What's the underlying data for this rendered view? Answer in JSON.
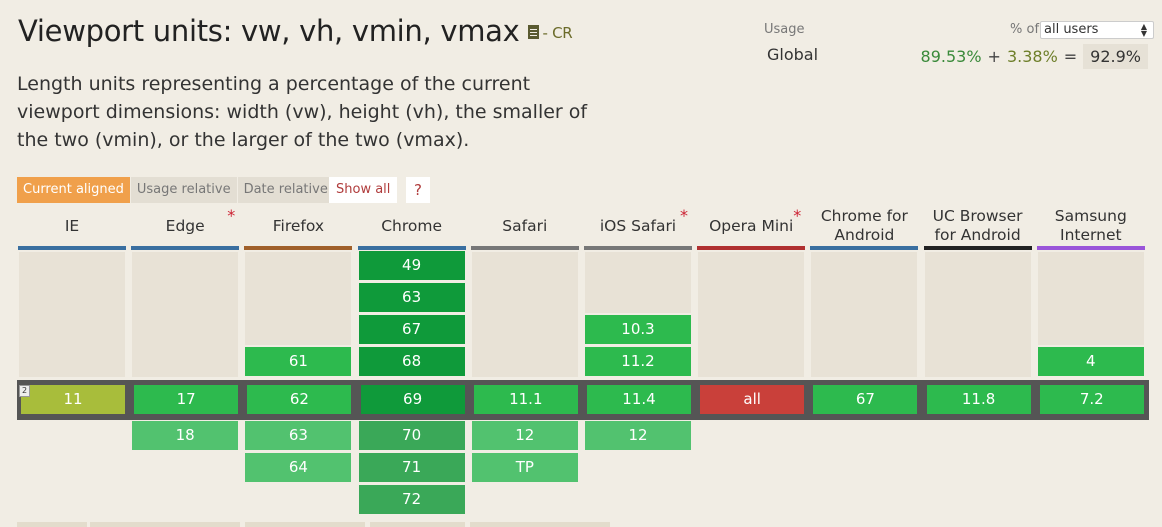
{
  "header": {
    "title": "Viewport units: vw, vh, vmin, vmax",
    "status": "- CR",
    "description": "Length units representing a percentage of the current viewport dimensions: width (vw), height (vh), the smaller of the two (vmin), or the larger of the two (vmax)."
  },
  "usage": {
    "label": "Usage",
    "region": "Global",
    "pct_of": "% of",
    "user_select": "all users",
    "full": "89.53%",
    "plus": "+",
    "partial": "3.38%",
    "equals": "=",
    "total": "92.9%"
  },
  "tabs": [
    "Current aligned",
    "Usage relative",
    "Date relative"
  ],
  "show_all": "Show all",
  "help": "?",
  "prefix_note": "2",
  "colors": {
    "supported": "#2dba4e",
    "supported_current": "#0f9a3a",
    "supported_light": "#52c26f",
    "partial": "#a8bd3b",
    "unsupported": "#c9403a",
    "empty": "#e8e2d6"
  },
  "browsers": [
    {
      "name": "IE",
      "star": false,
      "line_color": "#3a6fa0",
      "past": [],
      "current": "11",
      "current_status": "partial",
      "future": []
    },
    {
      "name": "Edge",
      "star": true,
      "line_color": "#3a6fa0",
      "past": [],
      "current": "17",
      "current_status": "supported",
      "future": [
        "18"
      ]
    },
    {
      "name": "Firefox",
      "star": false,
      "line_color": "#a0602a",
      "past": [
        "61"
      ],
      "current": "62",
      "current_status": "supported",
      "future": [
        "63",
        "64"
      ]
    },
    {
      "name": "Chrome",
      "star": false,
      "line_color": "#3a6fa0",
      "past": [
        "49",
        "63",
        "67",
        "68"
      ],
      "current": "69",
      "current_status": "supported",
      "future": [
        "70",
        "71",
        "72"
      ]
    },
    {
      "name": "Safari",
      "star": false,
      "line_color": "#777777",
      "past": [],
      "current": "11.1",
      "current_status": "supported",
      "future": [
        "12",
        "TP"
      ]
    },
    {
      "name": "iOS Safari",
      "star": true,
      "line_color": "#777777",
      "past": [
        "10.3",
        "11.2"
      ],
      "current": "11.4",
      "current_status": "supported",
      "future": [
        "12"
      ]
    },
    {
      "name": "Opera Mini",
      "star": true,
      "line_color": "#b03030",
      "past": [],
      "current": "all",
      "current_status": "unsupported",
      "future": []
    },
    {
      "name": "Chrome for Android",
      "star": false,
      "line_color": "#3a6fa0",
      "past": [],
      "current": "67",
      "current_status": "supported",
      "future": []
    },
    {
      "name": "UC Browser for Android",
      "star": false,
      "line_color": "#222222",
      "past": [],
      "current": "11.8",
      "current_status": "supported",
      "future": []
    },
    {
      "name": "Samsung Internet",
      "star": false,
      "line_color": "#9a55d9",
      "past": [
        "4"
      ],
      "current": "7.2",
      "current_status": "supported",
      "future": []
    }
  ]
}
